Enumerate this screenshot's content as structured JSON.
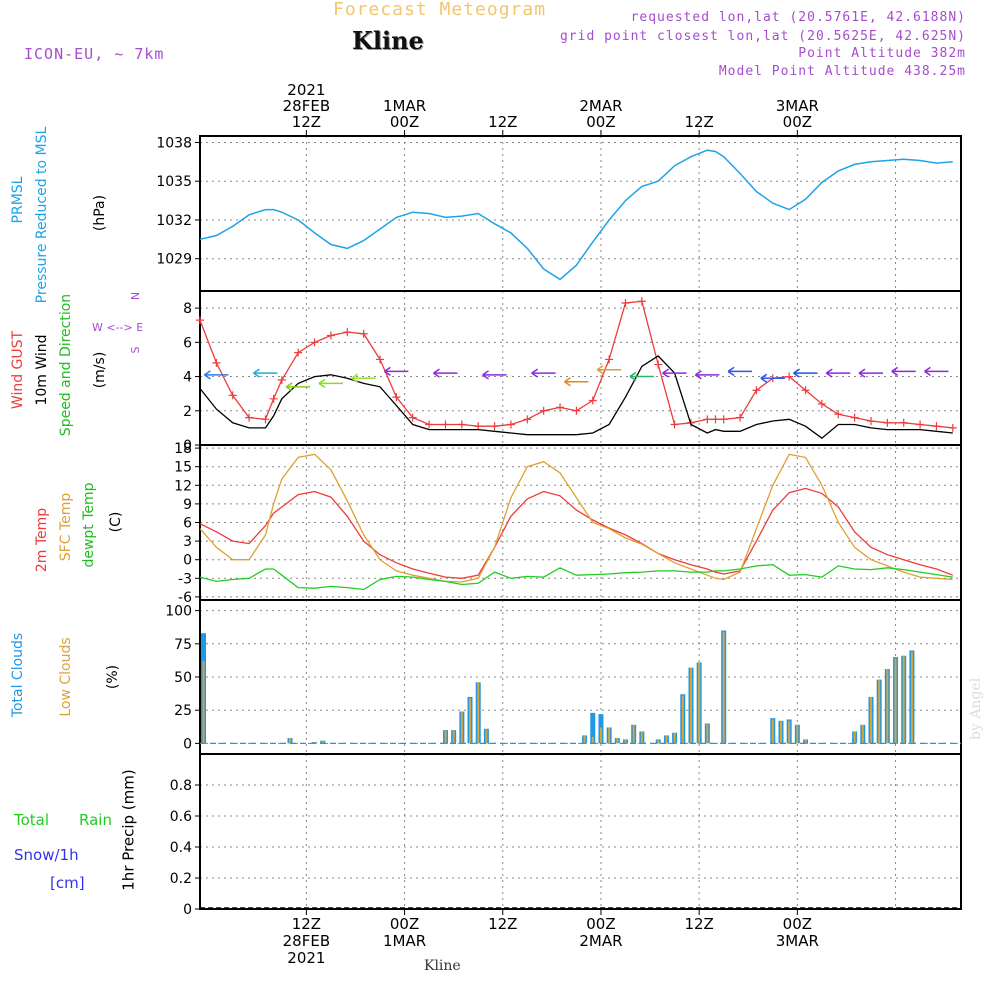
{
  "header": {
    "title": "Forecast Meteogram",
    "location": "Kline",
    "model": "ICON-EU, ~ 7km",
    "requested": "requested lon,lat (20.5761E, 42.6188N)",
    "grid_point": "grid point closest lon,lat (20.5625E, 42.625N)",
    "point_altitude": "Point Altitude 382m",
    "model_altitude": "Model Point Altitude 438.25m",
    "footer_location": "Kline",
    "credit": "by Angel"
  },
  "colors": {
    "title": "#f2c66e",
    "header_text": "#a64ccf",
    "pressure": "#1fa3e8",
    "gust": "#ee3b3b",
    "wind": "#000000",
    "wind_arrow": "#22cc22",
    "t2m": "#ee3b3b",
    "tsfc": "#e0a030",
    "dewpt": "#22cc22",
    "total_clouds": "#1f98e6",
    "low_clouds": "#d9a43a",
    "rain": "#22cc22",
    "snow": "#3333ee"
  },
  "chart_data": [
    {
      "id": "pressure",
      "type": "line",
      "ylabels": [
        "PRMSL",
        "Pressure Reduced to MSL",
        "(hPa)"
      ],
      "ylim": [
        1026.5,
        1038.5
      ],
      "yticks": [
        1029,
        1032,
        1035,
        1038
      ],
      "x_hours": [
        0,
        2,
        4,
        6,
        8,
        9,
        10,
        12,
        14,
        16,
        18,
        20,
        22,
        24,
        26,
        28,
        30,
        32,
        34,
        36,
        38,
        40,
        42,
        44,
        46,
        48,
        50,
        52,
        54,
        56,
        58,
        60,
        62,
        63,
        64,
        66,
        68,
        70,
        72,
        74,
        76,
        78,
        80,
        82,
        84,
        86,
        88,
        90,
        92
      ],
      "values": [
        1030.5,
        1030.8,
        1031.5,
        1032.4,
        1032.8,
        1032.8,
        1032.6,
        1032.0,
        1031.0,
        1030.1,
        1029.8,
        1030.4,
        1031.3,
        1032.2,
        1032.6,
        1032.5,
        1032.2,
        1032.3,
        1032.5,
        1031.7,
        1031.0,
        1029.8,
        1028.2,
        1027.4,
        1028.5,
        1030.3,
        1032.0,
        1033.5,
        1034.6,
        1035.0,
        1036.2,
        1036.9,
        1037.4,
        1037.3,
        1036.9,
        1035.6,
        1034.2,
        1033.3,
        1032.8,
        1033.6,
        1034.9,
        1035.8,
        1036.3,
        1036.5,
        1036.6,
        1036.7,
        1036.6,
        1036.4,
        1036.5
      ]
    },
    {
      "id": "wind",
      "type": "line",
      "ylabels": [
        "Wind GUST",
        "10m Wind",
        "Speed and Direction",
        "(m/s)"
      ],
      "compass": [
        "N",
        "W <--> E",
        "S"
      ],
      "ylim": [
        0,
        9
      ],
      "yticks": [
        0,
        2,
        4,
        6,
        8
      ],
      "x_hours": [
        0,
        2,
        4,
        6,
        8,
        9,
        10,
        12,
        14,
        16,
        18,
        20,
        22,
        24,
        26,
        28,
        30,
        32,
        34,
        36,
        38,
        40,
        42,
        44,
        46,
        48,
        50,
        52,
        54,
        56,
        58,
        60,
        62,
        63,
        64,
        66,
        68,
        70,
        72,
        74,
        76,
        78,
        80,
        82,
        84,
        86,
        88,
        90,
        92
      ],
      "series": [
        {
          "name": "Wind GUST",
          "values": [
            7.3,
            4.8,
            2.9,
            1.6,
            1.5,
            2.7,
            3.8,
            5.4,
            6.0,
            6.4,
            6.6,
            6.5,
            5.0,
            2.8,
            1.6,
            1.2,
            1.2,
            1.2,
            1.1,
            1.1,
            1.2,
            1.5,
            2.0,
            2.2,
            2.0,
            2.6,
            5.0,
            8.3,
            8.4,
            4.7,
            1.2,
            1.3,
            1.5,
            1.5,
            1.5,
            1.6,
            3.2,
            3.9,
            4.0,
            3.2,
            2.4,
            1.8,
            1.6,
            1.4,
            1.3,
            1.3,
            1.2,
            1.1,
            1.0
          ]
        },
        {
          "name": "10m Wind",
          "values": [
            3.3,
            2.1,
            1.3,
            1.0,
            1.0,
            1.7,
            2.7,
            3.6,
            4.0,
            4.1,
            3.9,
            3.6,
            3.4,
            2.3,
            1.2,
            0.9,
            0.9,
            0.9,
            0.9,
            0.8,
            0.7,
            0.6,
            0.6,
            0.6,
            0.6,
            0.7,
            1.2,
            2.8,
            4.6,
            5.2,
            4.2,
            1.2,
            0.7,
            0.9,
            0.8,
            0.8,
            1.2,
            1.4,
            1.5,
            1.1,
            0.4,
            1.2,
            1.2,
            1.0,
            0.9,
            0.9,
            0.9,
            0.8,
            0.7
          ]
        }
      ],
      "arrows": {
        "x_hours": [
          2,
          8,
          12,
          16,
          20,
          24,
          30,
          36,
          42,
          46,
          50,
          54,
          58,
          62,
          66,
          70,
          74,
          78,
          82,
          86,
          90
        ],
        "values": [
          4.1,
          4.2,
          3.4,
          3.6,
          3.9,
          4.3,
          4.2,
          4.1,
          4.2,
          3.7,
          4.4,
          4.0,
          4.2,
          4.1,
          4.3,
          3.9,
          4.2,
          4.2,
          4.2,
          4.3,
          4.3
        ]
      }
    },
    {
      "id": "temp",
      "type": "line",
      "ylabels": [
        "2m Temp",
        "SFC Temp",
        "dewpt Temp",
        "(C)"
      ],
      "ylim": [
        -6.5,
        18.5
      ],
      "yticks": [
        -6,
        -3,
        0,
        3,
        6,
        9,
        12,
        15,
        18
      ],
      "x_hours": [
        0,
        2,
        4,
        6,
        8,
        9,
        10,
        12,
        14,
        16,
        18,
        20,
        22,
        24,
        26,
        28,
        30,
        32,
        34,
        36,
        38,
        40,
        42,
        44,
        46,
        48,
        50,
        52,
        54,
        56,
        58,
        60,
        62,
        63,
        64,
        66,
        68,
        70,
        72,
        74,
        76,
        78,
        80,
        82,
        84,
        86,
        88,
        90,
        92
      ],
      "series": [
        {
          "name": "2m Temp",
          "values": [
            5.8,
            4.5,
            3.0,
            2.6,
            5.5,
            7.5,
            8.5,
            10.5,
            11.0,
            10.1,
            7.0,
            3.0,
            0.8,
            -0.5,
            -1.5,
            -2.2,
            -2.8,
            -3.0,
            -2.5,
            2.0,
            7.0,
            9.8,
            11.0,
            10.3,
            8.0,
            6.4,
            5.1,
            4.0,
            2.6,
            1.0,
            0.0,
            -0.8,
            -1.5,
            -2.0,
            -2.3,
            -1.8,
            3.0,
            8.0,
            10.8,
            11.5,
            10.7,
            8.5,
            4.5,
            2.0,
            0.8,
            0.0,
            -0.8,
            -1.5,
            -2.5
          ]
        },
        {
          "name": "SFC Temp",
          "values": [
            5.0,
            2.0,
            0.0,
            0.0,
            4.0,
            9.0,
            13.0,
            16.5,
            17.0,
            14.5,
            9.5,
            4.0,
            0.0,
            -1.8,
            -2.5,
            -3.0,
            -3.5,
            -3.6,
            -3.0,
            2.0,
            10.0,
            15.0,
            15.8,
            14.0,
            10.0,
            6.0,
            5.0,
            3.5,
            2.5,
            1.0,
            -0.5,
            -1.5,
            -2.5,
            -3.0,
            -3.2,
            -2.0,
            5.0,
            12.0,
            17.0,
            16.5,
            12.0,
            6.0,
            2.0,
            0.0,
            -1.0,
            -2.0,
            -2.8,
            -3.0,
            -3.2
          ]
        },
        {
          "name": "dewpt Temp",
          "values": [
            -2.8,
            -3.5,
            -3.2,
            -3.0,
            -1.5,
            -1.5,
            -2.5,
            -4.5,
            -4.6,
            -4.3,
            -4.5,
            -4.8,
            -3.2,
            -2.7,
            -2.8,
            -3.2,
            -3.5,
            -4.0,
            -3.8,
            -2.0,
            -3.0,
            -2.7,
            -2.8,
            -1.3,
            -2.5,
            -2.4,
            -2.3,
            -2.1,
            -2.0,
            -1.8,
            -1.8,
            -2.0,
            -2.0,
            -1.8,
            -1.8,
            -1.5,
            -1.0,
            -0.8,
            -2.5,
            -2.4,
            -2.8,
            -1.0,
            -1.5,
            -1.6,
            -1.3,
            -1.6,
            -2.0,
            -2.4,
            -2.8
          ]
        }
      ]
    },
    {
      "id": "clouds",
      "type": "bar",
      "ylabels": [
        "Total Clouds",
        "Low Clouds",
        "(%)"
      ],
      "ylim": [
        -8,
        108
      ],
      "yticks": [
        0,
        25,
        50,
        75,
        100
      ],
      "hours": [
        0,
        11,
        12,
        14,
        15,
        30,
        31,
        32,
        33,
        34,
        35,
        36,
        47,
        48,
        49,
        50,
        51,
        52,
        53,
        54,
        55,
        56,
        57,
        58,
        59,
        60,
        61,
        62,
        63,
        64,
        70,
        71,
        72,
        73,
        74,
        80,
        81,
        82,
        83,
        84,
        85,
        86,
        87,
        88,
        89,
        90,
        91,
        92
      ],
      "series": [
        {
          "name": "Total Clouds",
          "values": [
            83,
            4,
            0,
            1,
            2,
            10,
            10,
            24,
            35,
            46,
            11,
            0,
            6,
            23,
            22,
            12,
            4,
            3,
            14,
            9,
            0,
            3,
            6,
            8,
            37,
            57,
            61,
            15,
            0,
            85,
            19,
            17,
            18,
            14,
            3,
            9,
            14,
            35,
            48,
            56,
            65,
            66,
            70,
            0,
            0,
            0,
            0,
            0
          ]
        },
        {
          "name": "Low Clouds",
          "values": [
            62,
            4,
            0,
            1,
            2,
            10,
            10,
            24,
            34,
            46,
            11,
            0,
            6,
            5,
            12,
            12,
            4,
            3,
            14,
            9,
            0,
            3,
            6,
            8,
            36,
            57,
            61,
            15,
            0,
            84,
            18,
            17,
            17,
            14,
            3,
            9,
            14,
            35,
            48,
            56,
            64,
            66,
            69,
            0,
            0,
            0,
            0,
            0
          ]
        }
      ]
    },
    {
      "id": "precip",
      "type": "bar",
      "ylabels": [
        "Total",
        "Rain",
        "Snow/1h",
        "[cm]",
        "1hr Precip (mm)"
      ],
      "ylim": [
        0,
        1.0
      ],
      "yticks": [
        0,
        0.2,
        0.4,
        0.6,
        0.8
      ],
      "hours": [],
      "values": []
    }
  ],
  "time_axis": {
    "x_range_hours": [
      0,
      93
    ],
    "grid_hours": [
      13,
      25,
      37,
      49,
      61,
      73,
      85
    ],
    "top_labels": [
      {
        "hour": 13,
        "lines": [
          "2021",
          "28FEB",
          "12Z"
        ]
      },
      {
        "hour": 25,
        "lines": [
          "1MAR",
          "00Z"
        ]
      },
      {
        "hour": 37,
        "lines": [
          "12Z"
        ]
      },
      {
        "hour": 49,
        "lines": [
          "2MAR",
          "00Z"
        ]
      },
      {
        "hour": 61,
        "lines": [
          "12Z"
        ]
      },
      {
        "hour": 73,
        "lines": [
          "3MAR",
          "00Z"
        ]
      }
    ],
    "bottom_labels": [
      {
        "hour": 13,
        "lines": [
          "12Z",
          "28FEB",
          "2021"
        ]
      },
      {
        "hour": 25,
        "lines": [
          "00Z",
          "1MAR"
        ]
      },
      {
        "hour": 37,
        "lines": [
          "12Z"
        ]
      },
      {
        "hour": 49,
        "lines": [
          "00Z",
          "2MAR"
        ]
      },
      {
        "hour": 61,
        "lines": [
          "12Z"
        ]
      },
      {
        "hour": 73,
        "lines": [
          "00Z",
          "3MAR"
        ]
      }
    ]
  }
}
